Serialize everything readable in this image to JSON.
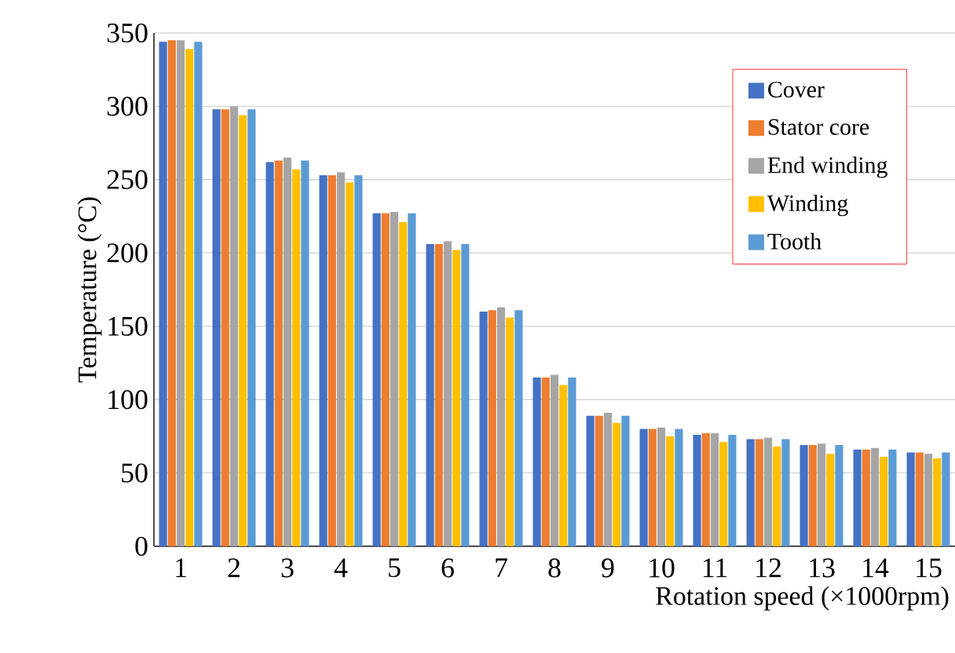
{
  "chart_data": {
    "type": "bar",
    "xlabel": "Rotation speed (×1000rpm)",
    "ylabel": "Temperature (°C)",
    "categories": [
      "1",
      "2",
      "3",
      "4",
      "5",
      "6",
      "7",
      "8",
      "9",
      "10",
      "11",
      "12",
      "13",
      "14",
      "15"
    ],
    "series": [
      {
        "name": "Cover",
        "color": "#4472c4",
        "values": [
          344,
          298,
          262,
          253,
          227,
          206,
          160,
          115,
          89,
          80,
          76,
          73,
          69,
          66,
          64
        ]
      },
      {
        "name": "Stator core",
        "color": "#ed7d31",
        "values": [
          345,
          298,
          263,
          253,
          227,
          206,
          161,
          115,
          89,
          80,
          77,
          73,
          69,
          66,
          64
        ]
      },
      {
        "name": "End winding",
        "color": "#a5a5a5",
        "values": [
          345,
          300,
          265,
          255,
          228,
          208,
          163,
          117,
          91,
          81,
          77,
          74,
          70,
          67,
          63
        ]
      },
      {
        "name": "Winding",
        "color": "#ffc000",
        "values": [
          339,
          294,
          257,
          248,
          221,
          202,
          156,
          110,
          84,
          75,
          71,
          68,
          63,
          61,
          60
        ]
      },
      {
        "name": "Tooth",
        "color": "#5b9bd5",
        "values": [
          344,
          298,
          263,
          253,
          227,
          206,
          161,
          115,
          89,
          80,
          76,
          73,
          69,
          66,
          64
        ]
      }
    ],
    "ylim": [
      0,
      350
    ],
    "yticks": [
      0,
      50,
      100,
      150,
      200,
      250,
      300,
      350
    ],
    "grid": "y",
    "legend": "top right"
  }
}
